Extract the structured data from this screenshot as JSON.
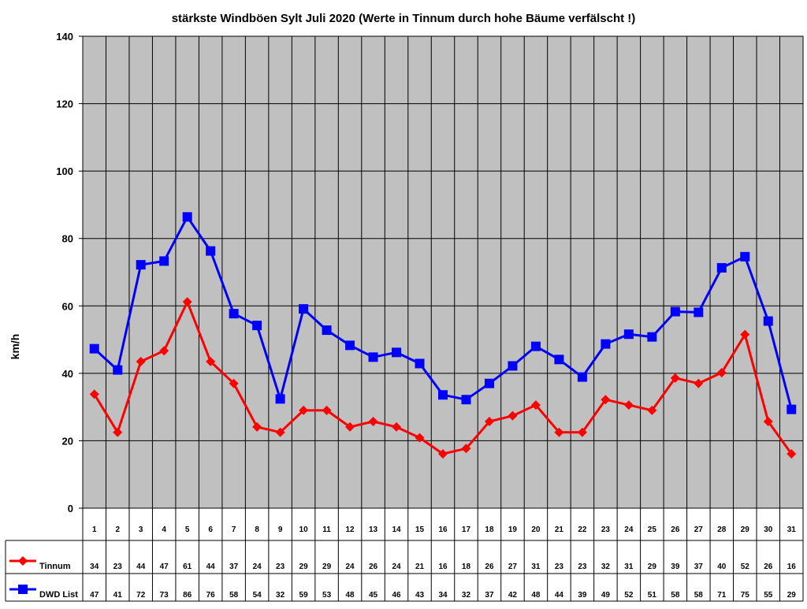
{
  "chart_data": {
    "type": "line",
    "title": "stärkste Windböen Sylt Juli 2020 (Werte in Tinnum durch hohe Bäume verfälscht !)",
    "xlabel": "",
    "ylabel": "km/h",
    "ylim": [
      0,
      140
    ],
    "yticks": [
      0,
      20,
      40,
      60,
      80,
      100,
      120,
      140
    ],
    "grid": true,
    "legend_placement": "data-table-left",
    "plot_background": "#c0c0c0",
    "categories": [
      "1",
      "2",
      "3",
      "4",
      "5",
      "6",
      "7",
      "8",
      "9",
      "10",
      "11",
      "12",
      "13",
      "14",
      "15",
      "16",
      "17",
      "18",
      "19",
      "20",
      "21",
      "22",
      "23",
      "24",
      "25",
      "26",
      "27",
      "28",
      "29",
      "30",
      "31"
    ],
    "series": [
      {
        "name": "Tinnum",
        "color": "#ff0000",
        "marker": "diamond",
        "values": [
          33.8,
          22.5,
          43.5,
          46.7,
          61.2,
          43.5,
          37.0,
          24.1,
          22.5,
          29.0,
          29.0,
          24.1,
          25.7,
          24.1,
          20.9,
          16.1,
          17.7,
          25.7,
          27.4,
          30.6,
          22.5,
          22.5,
          32.2,
          30.6,
          29.0,
          38.6,
          37.0,
          40.2,
          51.5,
          25.7,
          16.1
        ],
        "labels": [
          "34",
          "23",
          "44",
          "47",
          "61",
          "44",
          "37",
          "24",
          "23",
          "29",
          "29",
          "24",
          "26",
          "24",
          "21",
          "16",
          "18",
          "26",
          "27",
          "31",
          "23",
          "23",
          "32",
          "31",
          "29",
          "39",
          "37",
          "40",
          "52",
          "26",
          "16"
        ]
      },
      {
        "name": "DWD List",
        "color": "#0000ff",
        "marker": "square",
        "values": [
          47.3,
          41.0,
          72.2,
          73.3,
          86.4,
          76.3,
          57.7,
          54.2,
          32.4,
          59.1,
          52.8,
          48.3,
          44.8,
          46.2,
          42.9,
          33.6,
          32.2,
          37.0,
          42.2,
          48.0,
          44.1,
          38.9,
          48.7,
          51.6,
          50.8,
          58.3,
          58.1,
          71.3,
          74.6,
          55.5,
          29.3
        ],
        "labels": [
          "47",
          "41",
          "72",
          "73",
          "86",
          "76",
          "58",
          "54",
          "32",
          "59",
          "53",
          "48",
          "45",
          "46",
          "43",
          "34",
          "32",
          "37",
          "42",
          "48",
          "44",
          "39",
          "49",
          "52",
          "51",
          "58",
          "58",
          "71",
          "75",
          "55",
          "29"
        ]
      }
    ]
  }
}
